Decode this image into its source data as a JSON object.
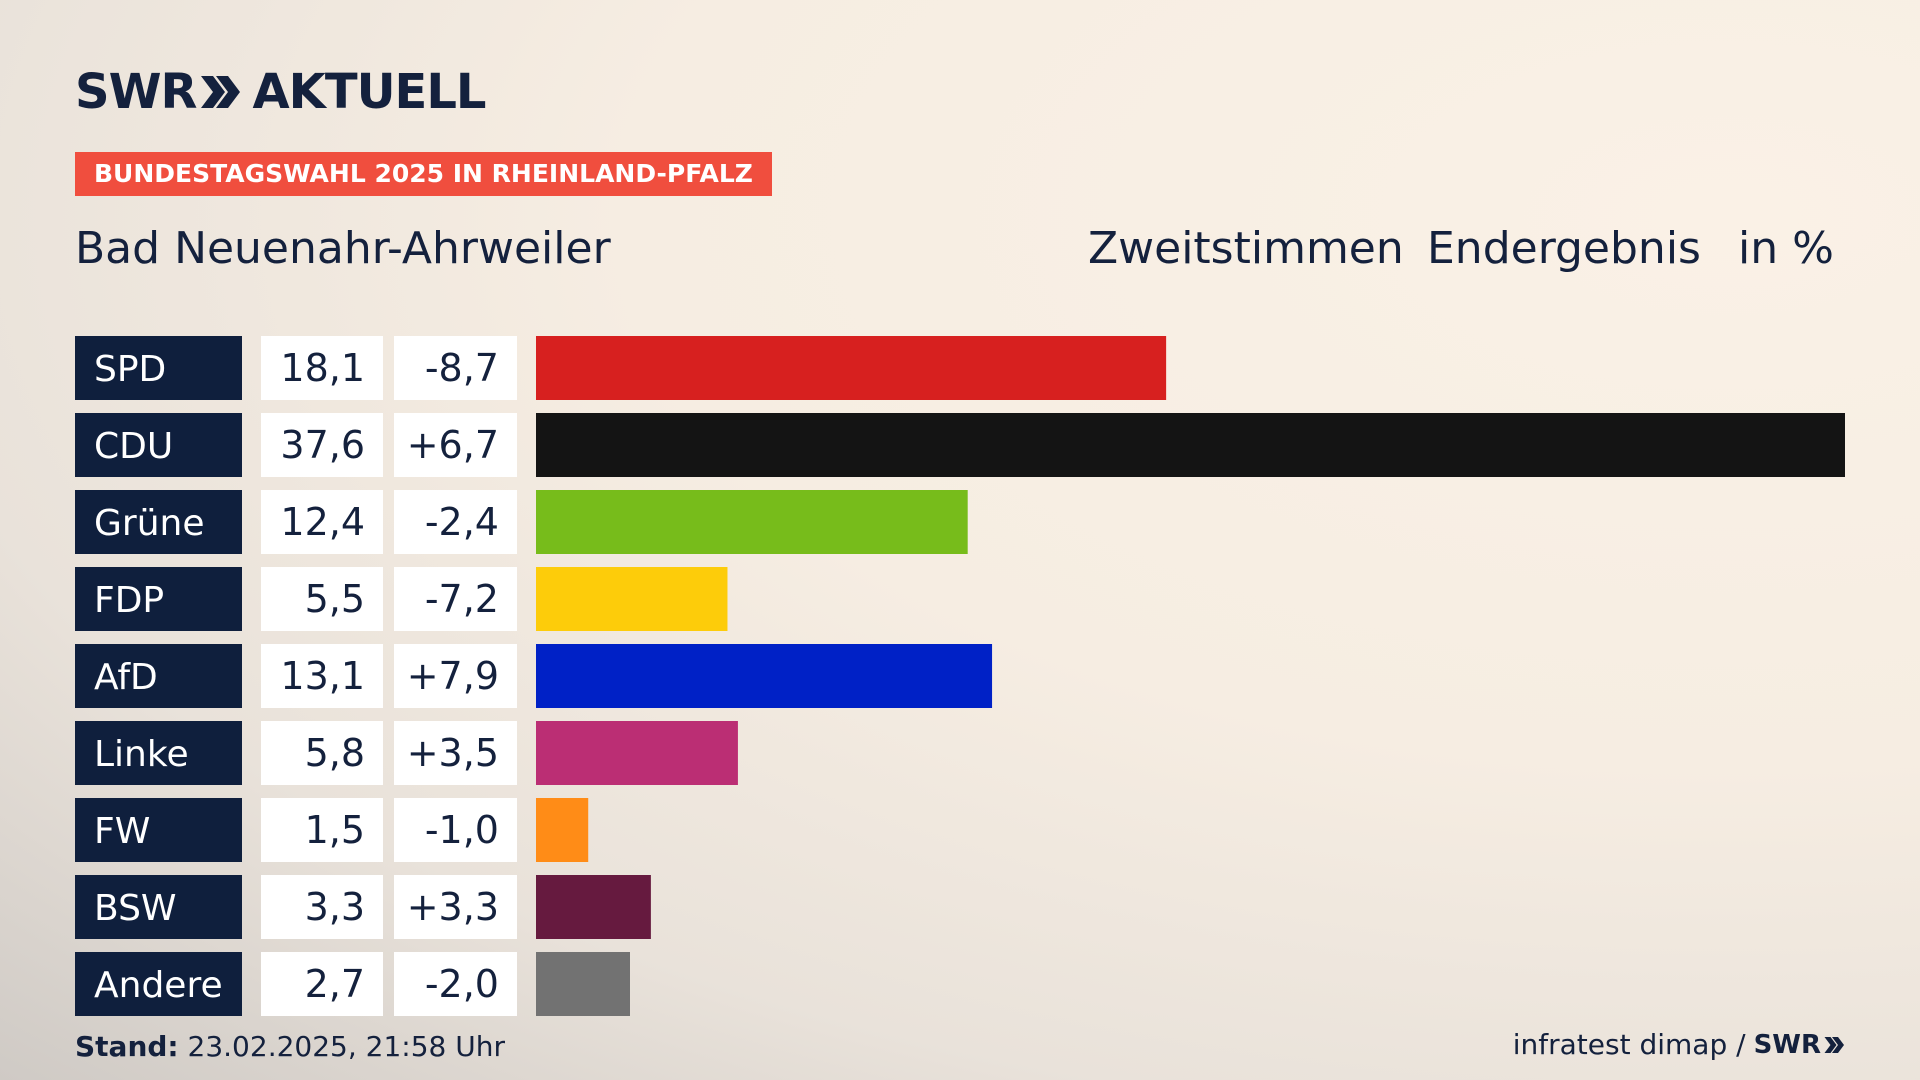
{
  "brand": {
    "name": "SWR",
    "suffix": "AKTUELL"
  },
  "tag": "BUNDESTAGSWAHL 2025 IN RHEINLAND-PFALZ",
  "region": "Bad Neuenahr-Ahrweiler",
  "headers": {
    "vote_type": "Zweitstimmen",
    "status": "Endergebnis",
    "unit": "in %"
  },
  "footer": {
    "stand_label": "Stand:",
    "stand_value": "23.02.2025, 21:58 Uhr",
    "source": "infratest dimap /",
    "source_brand": "SWR"
  },
  "colors": {
    "label_bg": "#0f1f3d",
    "value_bg": "#ffffff",
    "tag_bg": "#f04e3e"
  },
  "chart_data": {
    "type": "bar",
    "orientation": "horizontal",
    "categories": [
      "SPD",
      "CDU",
      "Grüne",
      "FDP",
      "AfD",
      "Linke",
      "FW",
      "BSW",
      "Andere"
    ],
    "values": [
      18.1,
      37.6,
      12.4,
      5.5,
      13.1,
      5.8,
      1.5,
      3.3,
      2.7
    ],
    "values_display": [
      "18,1",
      "37,6",
      "12,4",
      "5,5",
      "13,1",
      "5,8",
      "1,5",
      "3,3",
      "2,7"
    ],
    "change": [
      -8.7,
      6.7,
      -2.4,
      -7.2,
      7.9,
      3.5,
      -1.0,
      3.3,
      -2.0
    ],
    "change_display": [
      "-8,7",
      "+6,7",
      "-2,4",
      "-7,2",
      "+7,9",
      "+3,5",
      "-1,0",
      "+3,3",
      "-2,0"
    ],
    "bar_colors": [
      "#d7201f",
      "#141414",
      "#77bc1b",
      "#fdcc0a",
      "#0021c6",
      "#bb2e74",
      "#ff8c17",
      "#661a3f",
      "#727272"
    ],
    "xlim": [
      0,
      37.6
    ],
    "grid": false,
    "legend": "none"
  }
}
